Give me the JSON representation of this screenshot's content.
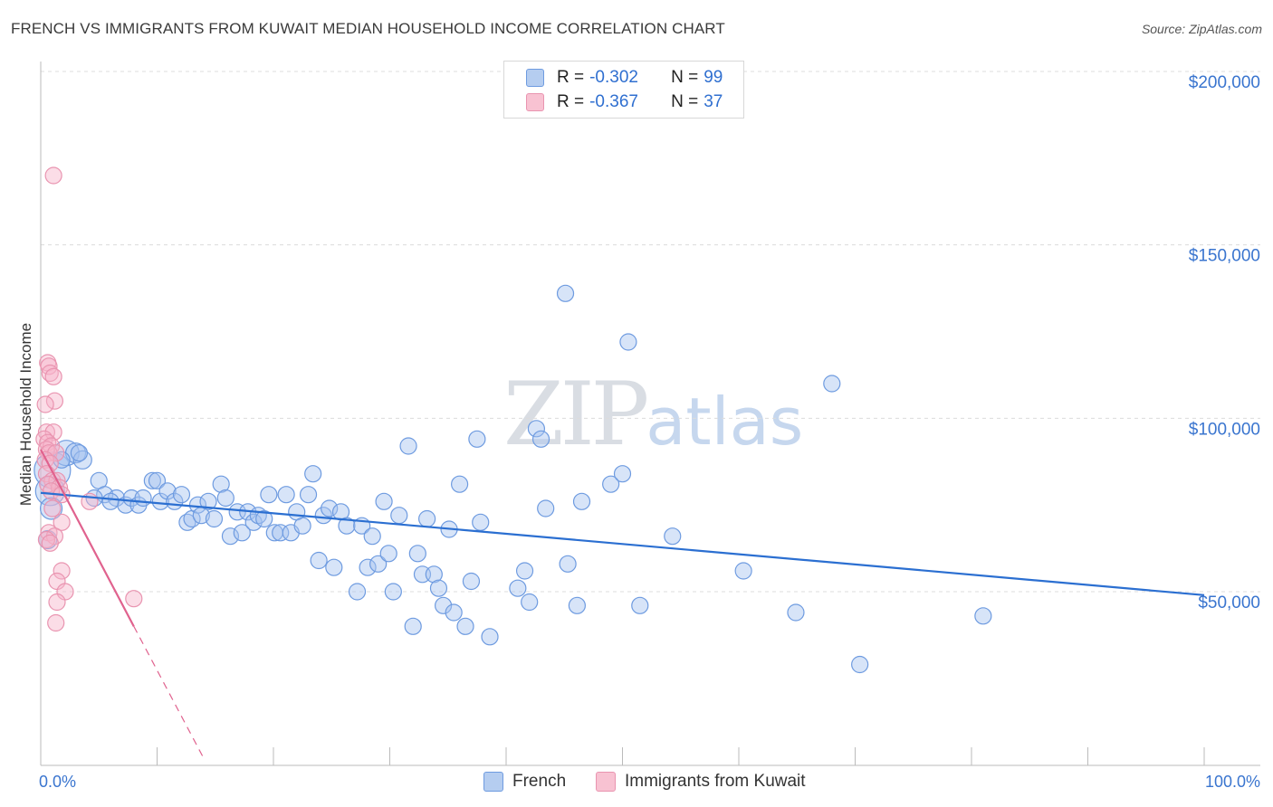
{
  "header": {
    "title": "FRENCH VS IMMIGRANTS FROM KUWAIT MEDIAN HOUSEHOLD INCOME CORRELATION CHART",
    "source": "Source: ZipAtlas.com"
  },
  "watermark": {
    "zip": "ZIP",
    "atlas": "atlas"
  },
  "legend": {
    "r_label": "R =",
    "n_label": "N =",
    "series": [
      {
        "r": "-0.302",
        "n": "99"
      },
      {
        "r": "-0.367",
        "n": "37"
      }
    ]
  },
  "colors": {
    "french": "#6e9be0",
    "french_line": "#2b6fd1",
    "kuwait": "#e994b0",
    "kuwait_line": "#e0628e",
    "axis_text": "#3a75cf"
  },
  "chart_data": {
    "type": "scatter",
    "title": "FRENCH VS IMMIGRANTS FROM KUWAIT MEDIAN HOUSEHOLD INCOME CORRELATION CHART",
    "xlabel": "",
    "ylabel": "Median Household Income",
    "xlim": [
      0,
      100
    ],
    "ylim": [
      0,
      210000
    ],
    "x_tick_labels": [
      "0.0%",
      "100.0%"
    ],
    "y_ticks": [
      50000,
      100000,
      150000,
      200000
    ],
    "y_tick_labels": [
      "$50,000",
      "$100,000",
      "$150,000",
      "$200,000"
    ],
    "grid": true,
    "series": [
      {
        "name": "French",
        "points": [
          [
            1.0,
            85000,
            20
          ],
          [
            0.8,
            79000,
            16
          ],
          [
            0.9,
            74000,
            12
          ],
          [
            0.6,
            65000,
            10
          ],
          [
            2.2,
            90000,
            14
          ],
          [
            3.0,
            90000,
            11
          ],
          [
            3.6,
            88000,
            10
          ],
          [
            5.0,
            82000,
            9
          ],
          [
            5.5,
            78000,
            9
          ],
          [
            6.5,
            77000,
            9
          ],
          [
            7.3,
            75000,
            9
          ],
          [
            7.8,
            77000,
            9
          ],
          [
            8.4,
            75000,
            9
          ],
          [
            8.8,
            77000,
            9
          ],
          [
            9.6,
            82000,
            9
          ],
          [
            10.0,
            82000,
            9
          ],
          [
            10.3,
            76000,
            9
          ],
          [
            10.9,
            79000,
            9
          ],
          [
            11.5,
            76000,
            9
          ],
          [
            12.1,
            78000,
            9
          ],
          [
            12.6,
            70000,
            9
          ],
          [
            13.0,
            71000,
            9
          ],
          [
            13.5,
            75000,
            9
          ],
          [
            13.8,
            72000,
            9
          ],
          [
            14.4,
            76000,
            9
          ],
          [
            14.9,
            71000,
            9
          ],
          [
            15.5,
            81000,
            9
          ],
          [
            15.9,
            77000,
            9
          ],
          [
            16.3,
            66000,
            9
          ],
          [
            16.9,
            73000,
            9
          ],
          [
            17.3,
            67000,
            9
          ],
          [
            17.8,
            73000,
            9
          ],
          [
            18.3,
            70000,
            9
          ],
          [
            18.7,
            72000,
            9
          ],
          [
            19.2,
            71000,
            9
          ],
          [
            19.6,
            78000,
            9
          ],
          [
            20.1,
            67000,
            9
          ],
          [
            20.6,
            67000,
            9
          ],
          [
            21.1,
            78000,
            9
          ],
          [
            21.5,
            67000,
            9
          ],
          [
            22.0,
            73000,
            9
          ],
          [
            22.5,
            69000,
            9
          ],
          [
            23.0,
            78000,
            9
          ],
          [
            23.4,
            84000,
            9
          ],
          [
            23.9,
            59000,
            9
          ],
          [
            24.3,
            72000,
            9
          ],
          [
            24.8,
            74000,
            9
          ],
          [
            25.2,
            57000,
            9
          ],
          [
            25.8,
            73000,
            9
          ],
          [
            26.3,
            69000,
            9
          ],
          [
            27.2,
            50000,
            9
          ],
          [
            27.6,
            69000,
            9
          ],
          [
            28.1,
            57000,
            9
          ],
          [
            28.5,
            66000,
            9
          ],
          [
            29.0,
            58000,
            9
          ],
          [
            29.5,
            76000,
            9
          ],
          [
            29.9,
            61000,
            9
          ],
          [
            30.3,
            50000,
            9
          ],
          [
            30.8,
            72000,
            9
          ],
          [
            31.6,
            92000,
            9
          ],
          [
            32.0,
            40000,
            9
          ],
          [
            32.4,
            61000,
            9
          ],
          [
            32.8,
            55000,
            9
          ],
          [
            33.2,
            71000,
            9
          ],
          [
            33.8,
            55000,
            9
          ],
          [
            34.2,
            51000,
            9
          ],
          [
            34.6,
            46000,
            9
          ],
          [
            35.1,
            68000,
            9
          ],
          [
            35.5,
            44000,
            9
          ],
          [
            36.0,
            81000,
            9
          ],
          [
            36.5,
            40000,
            9
          ],
          [
            37.0,
            53000,
            9
          ],
          [
            37.5,
            94000,
            9
          ],
          [
            37.8,
            70000,
            9
          ],
          [
            38.6,
            37000,
            9
          ],
          [
            41.0,
            51000,
            9
          ],
          [
            41.6,
            56000,
            9
          ],
          [
            42.0,
            47000,
            9
          ],
          [
            42.6,
            97000,
            9
          ],
          [
            43.0,
            94000,
            9
          ],
          [
            43.4,
            74000,
            9
          ],
          [
            45.1,
            136000,
            9
          ],
          [
            45.3,
            58000,
            9
          ],
          [
            46.1,
            46000,
            9
          ],
          [
            46.5,
            76000,
            9
          ],
          [
            49.0,
            81000,
            9
          ],
          [
            50.0,
            84000,
            9
          ],
          [
            50.5,
            122000,
            9
          ],
          [
            51.5,
            46000,
            9
          ],
          [
            54.3,
            66000,
            9
          ],
          [
            60.4,
            56000,
            9
          ],
          [
            64.9,
            44000,
            9
          ],
          [
            68.0,
            110000,
            9
          ],
          [
            70.4,
            29000,
            9
          ],
          [
            81.0,
            43000,
            9
          ],
          [
            3.3,
            90000,
            9
          ],
          [
            1.8,
            88000,
            9
          ],
          [
            4.6,
            77000,
            9
          ],
          [
            6.0,
            76000,
            9
          ]
        ]
      },
      {
        "name": "Immigrants from Kuwait",
        "points": [
          [
            1.1,
            170000,
            9
          ],
          [
            0.6,
            116000,
            9
          ],
          [
            0.7,
            115000,
            9
          ],
          [
            0.8,
            113000,
            9
          ],
          [
            1.1,
            112000,
            9
          ],
          [
            1.2,
            105000,
            9
          ],
          [
            0.4,
            104000,
            9
          ],
          [
            0.5,
            96000,
            9
          ],
          [
            1.1,
            96000,
            9
          ],
          [
            0.3,
            94000,
            9
          ],
          [
            0.6,
            93000,
            9
          ],
          [
            0.9,
            92000,
            9
          ],
          [
            0.5,
            91000,
            9
          ],
          [
            0.7,
            90000,
            9
          ],
          [
            1.3,
            90000,
            9
          ],
          [
            0.4,
            88000,
            9
          ],
          [
            0.8,
            87000,
            9
          ],
          [
            0.5,
            84000,
            9
          ],
          [
            1.0,
            82000,
            9
          ],
          [
            1.4,
            82000,
            9
          ],
          [
            0.6,
            81000,
            9
          ],
          [
            1.6,
            80000,
            9
          ],
          [
            0.9,
            79000,
            9
          ],
          [
            1.8,
            78000,
            9
          ],
          [
            4.2,
            76000,
            9
          ],
          [
            1.0,
            74000,
            9
          ],
          [
            1.8,
            70000,
            9
          ],
          [
            0.7,
            67000,
            9
          ],
          [
            1.2,
            66000,
            9
          ],
          [
            0.5,
            65000,
            9
          ],
          [
            0.8,
            64000,
            9
          ],
          [
            1.8,
            56000,
            9
          ],
          [
            1.4,
            53000,
            9
          ],
          [
            2.1,
            50000,
            9
          ],
          [
            8.0,
            48000,
            9
          ],
          [
            1.4,
            47000,
            9
          ],
          [
            1.3,
            41000,
            9
          ]
        ]
      }
    ],
    "trendlines": [
      {
        "series": "French",
        "x": [
          0,
          100
        ],
        "y": [
          78500,
          49000
        ],
        "style": "solid"
      },
      {
        "series": "Immigrants from Kuwait",
        "x": [
          0,
          8
        ],
        "y": [
          91000,
          40000
        ],
        "style": "solid"
      },
      {
        "series": "Immigrants from Kuwait",
        "x": [
          8,
          14
        ],
        "y": [
          40000,
          2000
        ],
        "style": "dashed"
      }
    ]
  }
}
